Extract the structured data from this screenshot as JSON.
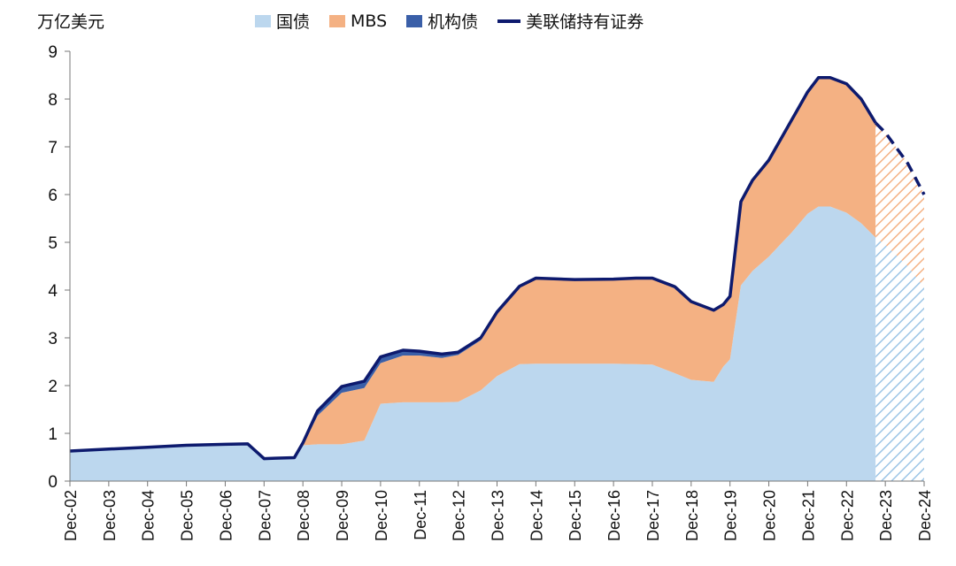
{
  "chart_data": {
    "type": "area",
    "unit_label": "万亿美元",
    "legend_position": "top",
    "grid": false,
    "ylim": [
      0,
      9
    ],
    "y_ticks": [
      "0",
      "1",
      "2",
      "3",
      "4",
      "5",
      "6",
      "7",
      "8",
      "9"
    ],
    "x_ticks": [
      "Dec-02",
      "Dec-03",
      "Dec-04",
      "Dec-05",
      "Dec-06",
      "Dec-07",
      "Dec-08",
      "Dec-09",
      "Dec-10",
      "Dec-11",
      "Dec-12",
      "Dec-13",
      "Dec-14",
      "Dec-15",
      "Dec-16",
      "Dec-17",
      "Dec-18",
      "Dec-19",
      "Dec-20",
      "Dec-21",
      "Dec-22",
      "Dec-23",
      "Dec-24"
    ],
    "xlim": [
      2002.92,
      2024.92
    ],
    "projection_start": 2023.67,
    "x": [
      2002.92,
      2003.92,
      2004.92,
      2005.92,
      2006.92,
      2007.5,
      2007.92,
      2008.2,
      2008.7,
      2008.92,
      2009.3,
      2009.92,
      2010.5,
      2010.92,
      2011.5,
      2011.92,
      2012.5,
      2012.92,
      2013.5,
      2013.92,
      2014.5,
      2014.92,
      2015.92,
      2016.92,
      2017.5,
      2017.92,
      2018.5,
      2018.92,
      2019.5,
      2019.75,
      2019.92,
      2020.2,
      2020.5,
      2020.92,
      2021.5,
      2021.92,
      2022.2,
      2022.5,
      2022.92,
      2023.3,
      2023.67,
      2023.92,
      2024.5,
      2024.92
    ],
    "series": [
      {
        "name": "国债",
        "color": "#bcd7ee",
        "values": [
          0.63,
          0.67,
          0.71,
          0.75,
          0.77,
          0.78,
          0.47,
          0.48,
          0.49,
          0.75,
          0.77,
          0.77,
          0.85,
          1.62,
          1.65,
          1.65,
          1.65,
          1.66,
          1.9,
          2.2,
          2.45,
          2.46,
          2.46,
          2.46,
          2.45,
          2.44,
          2.26,
          2.12,
          2.08,
          2.4,
          2.55,
          4.1,
          4.4,
          4.7,
          5.2,
          5.6,
          5.75,
          5.75,
          5.62,
          5.4,
          5.1,
          4.95,
          4.5,
          4.05
        ]
      },
      {
        "name": "MBS",
        "color": "#f4b183",
        "values": [
          0,
          0,
          0,
          0,
          0,
          0,
          0,
          0,
          0,
          0,
          0.6,
          1.08,
          1.1,
          0.85,
          0.98,
          0.98,
          0.93,
          0.98,
          1.05,
          1.3,
          1.6,
          1.76,
          1.74,
          1.75,
          1.79,
          1.8,
          1.8,
          1.63,
          1.5,
          1.3,
          1.32,
          1.75,
          1.9,
          2.02,
          2.35,
          2.55,
          2.7,
          2.7,
          2.7,
          2.6,
          2.4,
          2.35,
          2.15,
          1.95
        ]
      },
      {
        "name": "机构债",
        "color": "#3a5fa8",
        "values": [
          0,
          0,
          0,
          0,
          0,
          0,
          0,
          0,
          0,
          0.05,
          0.1,
          0.13,
          0.14,
          0.13,
          0.11,
          0.09,
          0.08,
          0.06,
          0.05,
          0.04,
          0.03,
          0.03,
          0.02,
          0.02,
          0.01,
          0.01,
          0.01,
          0.01,
          0,
          0,
          0,
          0,
          0,
          0,
          0,
          0,
          0,
          0,
          0,
          0,
          0,
          0,
          0,
          0
        ]
      },
      {
        "name": "美联储持有证券",
        "color": "#0d1a6e",
        "values": [
          0.63,
          0.67,
          0.71,
          0.75,
          0.77,
          0.78,
          0.47,
          0.48,
          0.49,
          0.8,
          1.47,
          1.98,
          2.09,
          2.6,
          2.74,
          2.72,
          2.66,
          2.7,
          3.0,
          3.54,
          4.08,
          4.25,
          4.22,
          4.23,
          4.25,
          4.25,
          4.07,
          3.76,
          3.58,
          3.7,
          3.87,
          5.85,
          6.3,
          6.72,
          7.55,
          8.15,
          8.45,
          8.45,
          8.32,
          8.0,
          7.5,
          7.3,
          6.65,
          6.0
        ]
      }
    ]
  }
}
